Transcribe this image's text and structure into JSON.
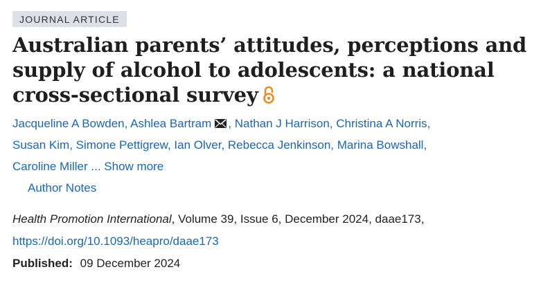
{
  "badge": "JOURNAL ARTICLE",
  "title": "Australian parents’ attitudes, perceptions and supply of alcohol to adolescents: a national cross-sectional survey",
  "icons": {
    "open_access": "open-access-icon",
    "mail": "mail-icon"
  },
  "colors": {
    "link": "#1a66b8",
    "open_access": "#f08a24",
    "badge_bg": "#dde0e8"
  },
  "authors": [
    "Jacqueline A Bowden",
    "Ashlea Bartram",
    "Nathan J Harrison",
    "Christina A Norris",
    "Susan Kim",
    "Simone Pettigrew",
    "Ian Olver",
    "Rebecca Jenkinson",
    "Marina Bowshall",
    "Caroline Miller"
  ],
  "ellipsis": "...",
  "show_more": "Show more",
  "author_notes": "Author Notes",
  "citation": {
    "journal": "Health Promotion International",
    "details": ", Volume 39, Issue 6, December 2024, daae173,",
    "doi": "https://doi.org/10.1093/heapro/daae173"
  },
  "published": {
    "label": "Published:",
    "date": "09 December 2024"
  }
}
